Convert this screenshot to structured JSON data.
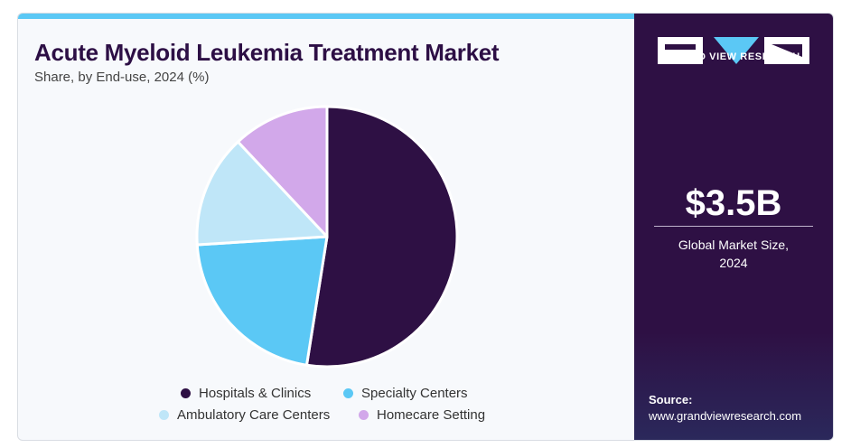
{
  "header": {
    "title": "Acute Myeloid Leukemia Treatment Market",
    "subtitle": "Share, by End-use, 2024 (%)"
  },
  "sidebar": {
    "logo_text": "GRAND VIEW RESEARCH",
    "market_value": "$3.5B",
    "market_label_line1": "Global Market Size,",
    "market_label_line2": "2024",
    "source_label": "Source:",
    "source_url": "www.grandviewresearch.com"
  },
  "colors": {
    "accent": "#5bc8f5",
    "panel": "#2e1044"
  },
  "chart_data": {
    "type": "pie",
    "title": "Acute Myeloid Leukemia Treatment Market",
    "subtitle": "Share, by End-use, 2024 (%)",
    "legend_position": "bottom",
    "categories": [
      "Hospitals & Clinics",
      "Specialty Centers",
      "Ambulatory Care Centers",
      "Homecare Setting"
    ],
    "values": [
      52.5,
      21.5,
      14.0,
      12.0
    ],
    "colors": [
      "#2e1044",
      "#5bc8f5",
      "#bfe6f8",
      "#d2a8ea"
    ]
  }
}
